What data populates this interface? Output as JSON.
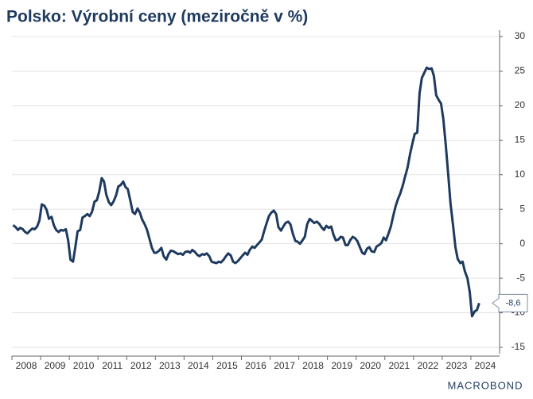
{
  "chart_data": {
    "type": "line",
    "title": "Polsko: Výrobní ceny (meziročně v %)",
    "source": "MACROBOND",
    "color": "#1f3a5f",
    "grid": true,
    "xlim": [
      2008,
      2025
    ],
    "xticks": [
      2008,
      2009,
      2010,
      2011,
      2012,
      2013,
      2014,
      2015,
      2016,
      2017,
      2018,
      2019,
      2020,
      2021,
      2022,
      2023,
      2024
    ],
    "ylim": [
      -15,
      30
    ],
    "yticks": [
      30,
      25,
      20,
      15,
      10,
      5,
      0,
      -5,
      -10,
      -15
    ],
    "x": [
      2008.04,
      2008.13,
      2008.21,
      2008.29,
      2008.38,
      2008.46,
      2008.54,
      2008.63,
      2008.71,
      2008.79,
      2008.88,
      2008.96,
      2009.04,
      2009.13,
      2009.21,
      2009.29,
      2009.38,
      2009.46,
      2009.54,
      2009.63,
      2009.71,
      2009.79,
      2009.88,
      2009.96,
      2010.04,
      2010.13,
      2010.21,
      2010.29,
      2010.38,
      2010.46,
      2010.54,
      2010.63,
      2010.71,
      2010.79,
      2010.88,
      2010.96,
      2011.04,
      2011.13,
      2011.21,
      2011.29,
      2011.38,
      2011.46,
      2011.54,
      2011.63,
      2011.71,
      2011.79,
      2011.88,
      2011.96,
      2012.04,
      2012.13,
      2012.21,
      2012.29,
      2012.38,
      2012.46,
      2012.54,
      2012.63,
      2012.71,
      2012.79,
      2012.88,
      2012.96,
      2013.04,
      2013.13,
      2013.21,
      2013.29,
      2013.38,
      2013.46,
      2013.54,
      2013.63,
      2013.71,
      2013.79,
      2013.88,
      2013.96,
      2014.04,
      2014.13,
      2014.21,
      2014.29,
      2014.38,
      2014.46,
      2014.54,
      2014.63,
      2014.71,
      2014.79,
      2014.88,
      2014.96,
      2015.04,
      2015.13,
      2015.21,
      2015.29,
      2015.38,
      2015.46,
      2015.54,
      2015.63,
      2015.71,
      2015.79,
      2015.88,
      2015.96,
      2016.04,
      2016.13,
      2016.21,
      2016.29,
      2016.38,
      2016.46,
      2016.54,
      2016.63,
      2016.71,
      2016.79,
      2016.88,
      2016.96,
      2017.04,
      2017.13,
      2017.21,
      2017.29,
      2017.38,
      2017.46,
      2017.54,
      2017.63,
      2017.71,
      2017.79,
      2017.88,
      2017.96,
      2018.04,
      2018.13,
      2018.21,
      2018.29,
      2018.38,
      2018.46,
      2018.54,
      2018.63,
      2018.71,
      2018.79,
      2018.88,
      2018.96,
      2019.04,
      2019.13,
      2019.21,
      2019.29,
      2019.38,
      2019.46,
      2019.54,
      2019.63,
      2019.71,
      2019.79,
      2019.88,
      2019.96,
      2020.04,
      2020.13,
      2020.21,
      2020.29,
      2020.38,
      2020.46,
      2020.54,
      2020.63,
      2020.71,
      2020.79,
      2020.88,
      2020.96,
      2021.04,
      2021.13,
      2021.21,
      2021.29,
      2021.38,
      2021.46,
      2021.54,
      2021.63,
      2021.71,
      2021.79,
      2021.88,
      2021.96,
      2022.04,
      2022.13,
      2022.21,
      2022.29,
      2022.38,
      2022.46,
      2022.54,
      2022.63,
      2022.71,
      2022.79,
      2022.88,
      2022.96,
      2023.04,
      2023.13,
      2023.21,
      2023.29,
      2023.38,
      2023.46,
      2023.54,
      2023.63,
      2023.71,
      2023.79,
      2023.88,
      2023.96,
      2024.04,
      2024.13,
      2024.21,
      2024.29
    ],
    "values": [
      2.7,
      2.4,
      2.0,
      2.3,
      2.1,
      1.7,
      1.5,
      1.9,
      2.2,
      2.1,
      2.5,
      3.4,
      5.7,
      5.5,
      4.9,
      3.6,
      3.9,
      2.7,
      2.0,
      1.7,
      2.0,
      1.9,
      2.1,
      0.5,
      -2.3,
      -2.6,
      -0.5,
      1.8,
      2.0,
      3.8,
      4.0,
      4.3,
      4.0,
      4.6,
      6.1,
      6.3,
      7.5,
      9.5,
      9.0,
      7.1,
      6.0,
      5.6,
      6.1,
      7.0,
      8.3,
      8.5,
      9.0,
      8.2,
      7.9,
      6.2,
      4.6,
      4.3,
      5.1,
      4.5,
      3.5,
      2.8,
      2.0,
      0.8,
      -0.6,
      -1.3,
      -1.3,
      -1.0,
      -0.6,
      -1.8,
      -2.3,
      -1.5,
      -1.0,
      -1.1,
      -1.3,
      -1.5,
      -1.4,
      -1.6,
      -1.2,
      -1.1,
      -1.3,
      -0.9,
      -1.2,
      -1.6,
      -1.8,
      -1.5,
      -1.6,
      -1.4,
      -1.8,
      -2.6,
      -2.7,
      -2.8,
      -2.6,
      -2.7,
      -2.3,
      -1.8,
      -1.4,
      -1.7,
      -2.6,
      -2.8,
      -2.5,
      -2.1,
      -1.7,
      -1.3,
      -1.6,
      -0.9,
      -0.4,
      -0.6,
      -0.2,
      0.2,
      0.6,
      1.8,
      3.0,
      4.0,
      4.5,
      4.8,
      4.3,
      2.4,
      1.9,
      2.5,
      3.0,
      3.2,
      2.8,
      1.5,
      0.4,
      0.3,
      0.0,
      0.5,
      1.0,
      2.8,
      3.6,
      3.3,
      3.0,
      3.2,
      2.9,
      2.4,
      2.0,
      2.6,
      2.3,
      2.5,
      1.3,
      0.5,
      0.6,
      1.0,
      0.9,
      -0.2,
      -0.2,
      0.5,
      1.0,
      0.8,
      0.4,
      -0.5,
      -1.3,
      -1.5,
      -0.7,
      -0.5,
      -1.1,
      -1.2,
      -0.4,
      -0.2,
      0.1,
      0.9,
      0.5,
      1.5,
      2.5,
      4.0,
      5.5,
      6.5,
      7.3,
      8.5,
      9.8,
      11.0,
      13.0,
      14.5,
      15.9,
      16.1,
      21.8,
      24.0,
      24.8,
      25.5,
      25.3,
      25.4,
      24.3,
      21.5,
      20.8,
      20.3,
      18.0,
      14.0,
      10.0,
      5.8,
      2.6,
      -0.5,
      -2.2,
      -2.8,
      -2.6,
      -4.0,
      -5.0,
      -7.0,
      -10.5,
      -9.8,
      -9.6,
      -8.6
    ],
    "annotations": [
      {
        "text": "-8,6",
        "x": 2024.29,
        "y": -8.6
      }
    ]
  }
}
